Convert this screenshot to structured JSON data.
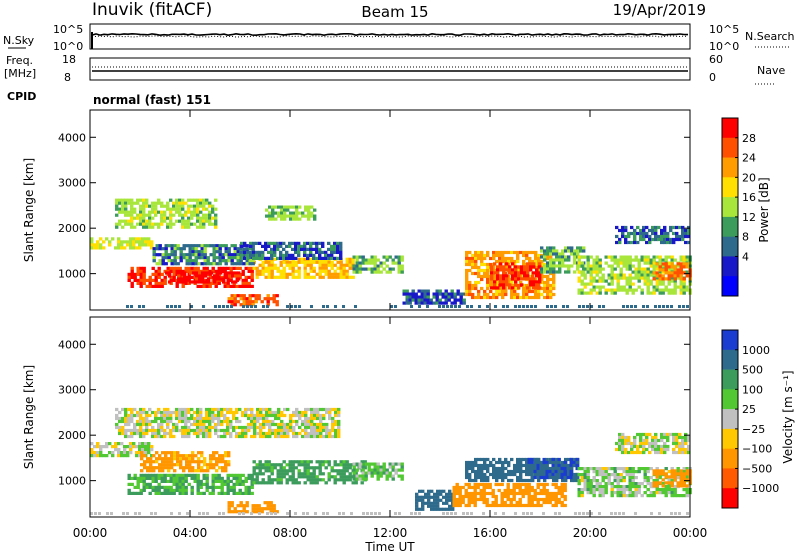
{
  "header": {
    "station": "Inuvik (fitACF)",
    "beam": "Beam 15",
    "date": "19/Apr/2019"
  },
  "top_panels": {
    "nsky_label": "N.Sky",
    "nsky_ticks": [
      "10^5",
      "10^0"
    ],
    "nsearch_label": "N.Search",
    "nsearch_ticks": [
      "10^5",
      "10^0"
    ],
    "freq_label_1": "Freq.",
    "freq_label_2": "[MHz]",
    "freq_ticks": [
      "18",
      "8"
    ],
    "nave_label": "Nave",
    "nave_ticks": [
      "60",
      "0"
    ],
    "cpid_label": "CPID",
    "cpid_value": "normal (fast) 151"
  },
  "colorbars": {
    "power": {
      "title": "Power [dB]",
      "ticks": [
        "28",
        "24",
        "20",
        "16",
        "12",
        "8",
        "4"
      ],
      "colors": [
        "#ff0000",
        "#ff5000",
        "#ff9c00",
        "#ffe000",
        "#a8e63c",
        "#3c9c5c",
        "#2e6a8c",
        "#1818c8",
        "#0000ff"
      ]
    },
    "velocity": {
      "title": "Velocity [m s⁻¹]",
      "ticks": [
        "1000",
        "500",
        "100",
        "25",
        "−25",
        "−100",
        "−500",
        "−1000"
      ],
      "colors": [
        "#1a3cd0",
        "#2e6a8c",
        "#3c9c5c",
        "#52c832",
        "#c0c0c0",
        "#ffc800",
        "#ff9600",
        "#ff5a00",
        "#ff0000"
      ]
    }
  },
  "chart_data": [
    {
      "type": "heatmap",
      "panel": "power",
      "xlabel": "Time UT",
      "ylabel": "Slant Range [km]",
      "xlim": [
        0,
        24
      ],
      "ylim": [
        200,
        4600
      ],
      "xticks": [
        "00:00",
        "04:00",
        "08:00",
        "12:00",
        "16:00",
        "20:00",
        "00:00"
      ],
      "yticks": [
        1000,
        2000,
        3000,
        4000
      ],
      "regions": [
        {
          "t0": 0.0,
          "t1": 2.5,
          "r0": 1550,
          "r1": 1800,
          "value": 16
        },
        {
          "t0": 1.5,
          "t1": 6.5,
          "r0": 750,
          "r1": 1150,
          "value": 28
        },
        {
          "t0": 3.0,
          "t1": 6.0,
          "r0": 850,
          "r1": 1050,
          "value": 30
        },
        {
          "t0": 6.5,
          "t1": 10.5,
          "r0": 950,
          "r1": 1350,
          "value": 20
        },
        {
          "t0": 10.5,
          "t1": 12.5,
          "r0": 1050,
          "r1": 1400,
          "value": 12
        },
        {
          "t0": 2.5,
          "t1": 6.5,
          "r0": 1250,
          "r1": 1650,
          "value": 10
        },
        {
          "t0": 6.0,
          "t1": 10.0,
          "r0": 1350,
          "r1": 1700,
          "value": 9
        },
        {
          "t0": 1.0,
          "t1": 5.0,
          "r0": 2000,
          "r1": 2650,
          "value": 14
        },
        {
          "t0": 7.0,
          "t1": 9.0,
          "r0": 2200,
          "r1": 2500,
          "value": 13
        },
        {
          "t0": 5.5,
          "t1": 7.5,
          "r0": 300,
          "r1": 550,
          "value": 26
        },
        {
          "t0": 12.5,
          "t1": 15.0,
          "r0": 350,
          "r1": 650,
          "value": 8
        },
        {
          "t0": 15.0,
          "t1": 18.5,
          "r0": 500,
          "r1": 1500,
          "value": 22
        },
        {
          "t0": 16.0,
          "t1": 18.0,
          "r0": 700,
          "r1": 1250,
          "value": 28
        },
        {
          "t0": 18.0,
          "t1": 19.8,
          "r0": 1050,
          "r1": 1600,
          "value": 12
        },
        {
          "t0": 19.5,
          "t1": 24.0,
          "r0": 600,
          "r1": 1400,
          "value": 14
        },
        {
          "t0": 22.5,
          "t1": 24.0,
          "r0": 900,
          "r1": 1250,
          "value": 24
        },
        {
          "t0": 21.0,
          "t1": 24.0,
          "r0": 1700,
          "r1": 2050,
          "value": 9
        }
      ]
    },
    {
      "type": "heatmap",
      "panel": "velocity",
      "xlabel": "Time UT",
      "ylabel": "Slant Range [km]",
      "xlim": [
        0,
        24
      ],
      "ylim": [
        200,
        4600
      ],
      "xticks": [
        "00:00",
        "04:00",
        "08:00",
        "12:00",
        "16:00",
        "20:00",
        "00:00"
      ],
      "yticks": [
        1000,
        2000,
        3000,
        4000
      ],
      "regions": [
        {
          "t0": 0.0,
          "t1": 2.5,
          "r0": 1550,
          "r1": 1850,
          "value": 10
        },
        {
          "t0": 1.5,
          "t1": 6.5,
          "r0": 750,
          "r1": 1150,
          "value": 100
        },
        {
          "t0": 2.0,
          "t1": 5.5,
          "r0": 1200,
          "r1": 1650,
          "value": -150
        },
        {
          "t0": 6.5,
          "t1": 11.0,
          "r0": 950,
          "r1": 1450,
          "value": 150
        },
        {
          "t0": 10.5,
          "t1": 12.5,
          "r0": 1050,
          "r1": 1400,
          "value": 60
        },
        {
          "t0": 1.0,
          "t1": 10.0,
          "r0": 2000,
          "r1": 2600,
          "value": 0
        },
        {
          "t0": 5.5,
          "t1": 7.5,
          "r0": 300,
          "r1": 550,
          "value": -200
        },
        {
          "t0": 13.0,
          "t1": 14.5,
          "r0": 400,
          "r1": 800,
          "value": 800
        },
        {
          "t0": 14.5,
          "t1": 19.0,
          "r0": 450,
          "r1": 950,
          "value": -400
        },
        {
          "t0": 15.0,
          "t1": 19.5,
          "r0": 1000,
          "r1": 1500,
          "value": 700
        },
        {
          "t0": 17.5,
          "t1": 19.5,
          "r0": 1100,
          "r1": 1500,
          "value": 1000
        },
        {
          "t0": 19.5,
          "t1": 24.0,
          "r0": 650,
          "r1": 1300,
          "value": 40
        },
        {
          "t0": 22.5,
          "t1": 24.0,
          "r0": 900,
          "r1": 1250,
          "value": -250
        },
        {
          "t0": 21.0,
          "t1": 24.0,
          "r0": 1650,
          "r1": 2050,
          "value": 0
        }
      ]
    }
  ]
}
